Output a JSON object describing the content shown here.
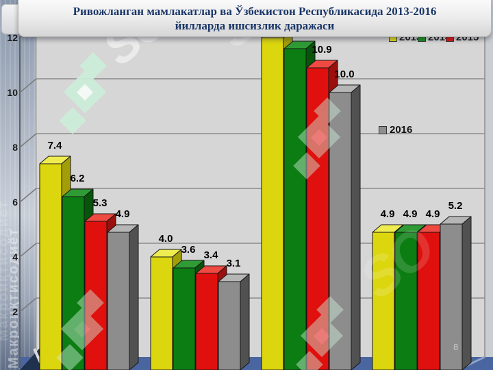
{
  "slide": {
    "title_line1": "Ривожланган мамлакатлар ва Ўзбекистон Республикасида 2013-2016",
    "title_line2": "йилларда ишсизлик даражаси",
    "page_number": "8",
    "sidebar_watermark_text": "Макроиқтисодиёт",
    "brand_watermark_text": "SO"
  },
  "legend": {
    "top": [
      {
        "label": "2013",
        "color": "#e3de1a"
      },
      {
        "label": "2014",
        "color": "#169016"
      },
      {
        "label": "2015",
        "color": "#df100d"
      }
    ],
    "side": {
      "label": "2016",
      "color": "#8f8f8f"
    }
  },
  "chart_data": {
    "type": "bar",
    "style": "3d-clustered",
    "title": "Ривожланган мамлакатлар ва Ўзбекистон Республикасида 2013-2016 йилларда ишсизлик даражаси",
    "xlabel": "",
    "ylabel": "",
    "ylim": [
      0,
      12
    ],
    "ytick_step": 2,
    "yticks": [
      2,
      4,
      6,
      8,
      10,
      12
    ],
    "grid": true,
    "legend_position": "top-right",
    "groups": 4,
    "categories": [
      "",
      "",
      "",
      ""
    ],
    "series": [
      {
        "name": "2013",
        "values": [
          7.4,
          4.0,
          12.0,
          4.9
        ],
        "labels": [
          "7.4",
          "4.0",
          "",
          "4.9"
        ],
        "colors": {
          "front": "#dcd60e",
          "top": "#efec52",
          "side": "#a29e08"
        }
      },
      {
        "name": "2014",
        "values": [
          6.2,
          3.6,
          11.6,
          4.9
        ],
        "labels": [
          "6.2",
          "3.6",
          "",
          "4.9"
        ],
        "colors": {
          "front": "#0c7d12",
          "top": "#2f9b35",
          "side": "#07550b"
        }
      },
      {
        "name": "2015",
        "values": [
          5.3,
          3.4,
          10.9,
          4.9
        ],
        "labels": [
          "5.3",
          "3.4",
          "10.9",
          "4.9"
        ],
        "colors": {
          "front": "#df100d",
          "top": "#ee4a42",
          "side": "#9b0f0c"
        }
      },
      {
        "name": "2016",
        "values": [
          4.9,
          3.1,
          10.0,
          5.2
        ],
        "labels": [
          "4.9",
          "3.1",
          "10.0",
          "5.2"
        ],
        "colors": {
          "front": "#8d8d8d",
          "top": "#b6b6b6",
          "side": "#515151"
        }
      }
    ]
  }
}
